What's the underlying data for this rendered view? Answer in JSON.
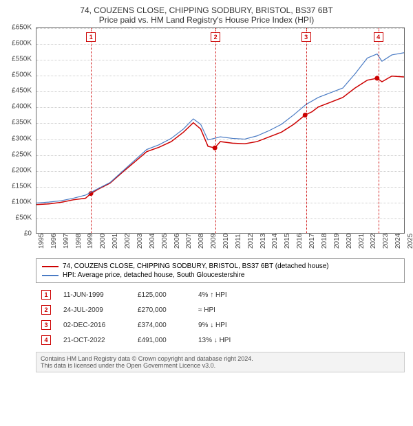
{
  "title": {
    "line1": "74, COUZENS CLOSE, CHIPPING SODBURY, BRISTOL, BS37 6BT",
    "line2": "Price paid vs. HM Land Registry's House Price Index (HPI)"
  },
  "chart": {
    "type": "line",
    "background_color": "#ffffff",
    "grid_color": "#cccccc",
    "axis_color": "#666666",
    "ylim": [
      0,
      650000
    ],
    "ytick_step": 50000,
    "y_tick_labels": [
      "£0",
      "£50K",
      "£100K",
      "£150K",
      "£200K",
      "£250K",
      "£300K",
      "£350K",
      "£400K",
      "£450K",
      "£500K",
      "£550K",
      "£600K",
      "£650K"
    ],
    "xlim": [
      1995,
      2025
    ],
    "x_ticks": [
      1995,
      1996,
      1997,
      1998,
      1999,
      2000,
      2001,
      2002,
      2003,
      2004,
      2005,
      2006,
      2007,
      2008,
      2009,
      2010,
      2011,
      2012,
      2013,
      2014,
      2015,
      2016,
      2017,
      2018,
      2019,
      2020,
      2021,
      2022,
      2023,
      2024,
      2025
    ],
    "series": [
      {
        "name": "price_paid",
        "label": "74, COUZENS CLOSE, CHIPPING SODBURY, BRISTOL, BS37 6BT (detached house)",
        "color": "#cc0000",
        "line_width": 1.5,
        "points": [
          [
            1995,
            90000
          ],
          [
            1996,
            92000
          ],
          [
            1997,
            97000
          ],
          [
            1998,
            105000
          ],
          [
            1999,
            110000
          ],
          [
            1999.44,
            125000
          ],
          [
            2000,
            138000
          ],
          [
            2001,
            158000
          ],
          [
            2002,
            192000
          ],
          [
            2003,
            225000
          ],
          [
            2004,
            258000
          ],
          [
            2005,
            272000
          ],
          [
            2006,
            290000
          ],
          [
            2007,
            320000
          ],
          [
            2007.8,
            350000
          ],
          [
            2008.4,
            330000
          ],
          [
            2009,
            275000
          ],
          [
            2009.56,
            270000
          ],
          [
            2010,
            290000
          ],
          [
            2011,
            285000
          ],
          [
            2012,
            283000
          ],
          [
            2013,
            290000
          ],
          [
            2014,
            305000
          ],
          [
            2015,
            320000
          ],
          [
            2016,
            345000
          ],
          [
            2016.92,
            374000
          ],
          [
            2017.5,
            385000
          ],
          [
            2018,
            400000
          ],
          [
            2019,
            415000
          ],
          [
            2020,
            430000
          ],
          [
            2021,
            460000
          ],
          [
            2022,
            485000
          ],
          [
            2022.8,
            491000
          ],
          [
            2023.2,
            480000
          ],
          [
            2024,
            498000
          ],
          [
            2025,
            495000
          ]
        ],
        "markers": [
          {
            "idx": 1,
            "year": 1999.44,
            "value": 125000,
            "color": "#cc0000"
          },
          {
            "idx": 2,
            "year": 2009.56,
            "value": 270000,
            "color": "#cc0000"
          },
          {
            "idx": 3,
            "year": 2016.92,
            "value": 374000,
            "color": "#cc0000"
          },
          {
            "idx": 4,
            "year": 2022.8,
            "value": 491000,
            "color": "#cc0000"
          }
        ]
      },
      {
        "name": "hpi",
        "label": "HPI: Average price, detached house, South Gloucestershire",
        "color": "#4a7bc4",
        "line_width": 1.2,
        "points": [
          [
            1995,
            95000
          ],
          [
            1996,
            98000
          ],
          [
            1997,
            102000
          ],
          [
            1998,
            110000
          ],
          [
            1999,
            120000
          ],
          [
            2000,
            140000
          ],
          [
            2001,
            160000
          ],
          [
            2002,
            195000
          ],
          [
            2003,
            230000
          ],
          [
            2004,
            265000
          ],
          [
            2005,
            280000
          ],
          [
            2006,
            300000
          ],
          [
            2007,
            330000
          ],
          [
            2007.8,
            362000
          ],
          [
            2008.4,
            345000
          ],
          [
            2009,
            295000
          ],
          [
            2010,
            305000
          ],
          [
            2011,
            300000
          ],
          [
            2012,
            298000
          ],
          [
            2013,
            308000
          ],
          [
            2014,
            325000
          ],
          [
            2015,
            345000
          ],
          [
            2016,
            375000
          ],
          [
            2017,
            408000
          ],
          [
            2018,
            430000
          ],
          [
            2019,
            445000
          ],
          [
            2020,
            460000
          ],
          [
            2021,
            505000
          ],
          [
            2022,
            555000
          ],
          [
            2022.8,
            568000
          ],
          [
            2023.2,
            545000
          ],
          [
            2024,
            565000
          ],
          [
            2025,
            572000
          ]
        ]
      }
    ],
    "event_lines": [
      {
        "idx": 1,
        "year": 1999.44,
        "color": "#cc0000"
      },
      {
        "idx": 2,
        "year": 2009.56,
        "color": "#cc0000"
      },
      {
        "idx": 3,
        "year": 2016.92,
        "color": "#cc0000"
      },
      {
        "idx": 4,
        "year": 2022.8,
        "color": "#cc0000"
      }
    ]
  },
  "legend": {
    "items": [
      {
        "color": "#cc0000",
        "label": "74, COUZENS CLOSE, CHIPPING SODBURY, BRISTOL, BS37 6BT (detached house)"
      },
      {
        "color": "#4a7bc4",
        "label": "HPI: Average price, detached house, South Gloucestershire"
      }
    ]
  },
  "transactions": [
    {
      "idx": "1",
      "date": "11-JUN-1999",
      "price": "£125,000",
      "delta": "4% ↑ HPI"
    },
    {
      "idx": "2",
      "date": "24-JUL-2009",
      "price": "£270,000",
      "delta": "≈ HPI"
    },
    {
      "idx": "3",
      "date": "02-DEC-2016",
      "price": "£374,000",
      "delta": "9% ↓ HPI"
    },
    {
      "idx": "4",
      "date": "21-OCT-2022",
      "price": "£491,000",
      "delta": "13% ↓ HPI"
    }
  ],
  "footer": {
    "line1": "Contains HM Land Registry data © Crown copyright and database right 2024.",
    "line2": "This data is licensed under the Open Government Licence v3.0."
  }
}
